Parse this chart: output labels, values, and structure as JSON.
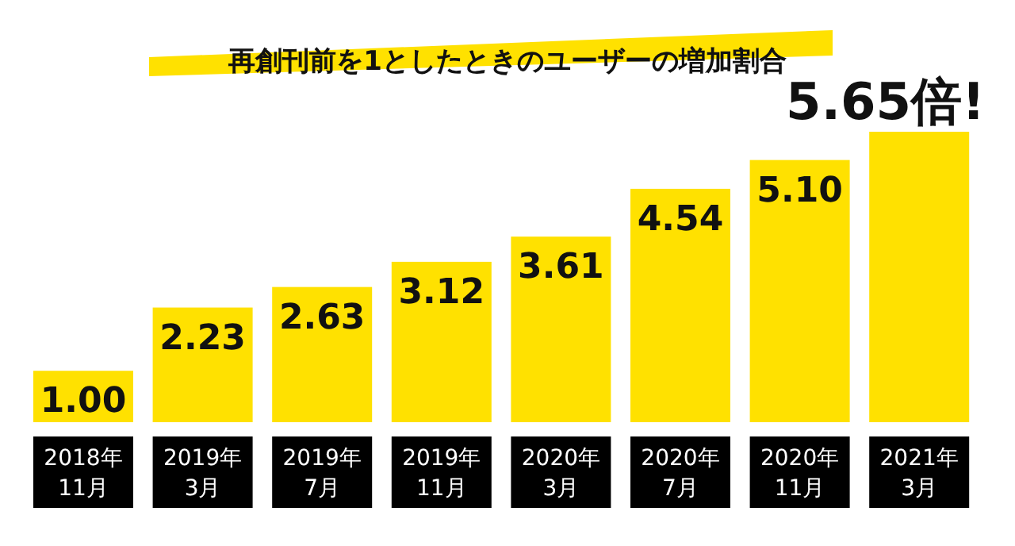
{
  "chart_data": {
    "type": "bar",
    "title": "再創刊前を1としたときのユーザーの増加割合",
    "categories": [
      "2018年\n11月",
      "2019年\n3月",
      "2019年\n7月",
      "2019年\n11月",
      "2020年\n3月",
      "2020年\n7月",
      "2020年\n11月",
      "2021年\n3月"
    ],
    "values": [
      1.0,
      2.23,
      2.63,
      3.12,
      3.61,
      4.54,
      5.1,
      5.65
    ],
    "value_labels": [
      "1.00",
      "2.23",
      "2.63",
      "3.12",
      "3.61",
      "4.54",
      "5.10",
      "5.65倍!"
    ],
    "color": "#ffe100"
  }
}
